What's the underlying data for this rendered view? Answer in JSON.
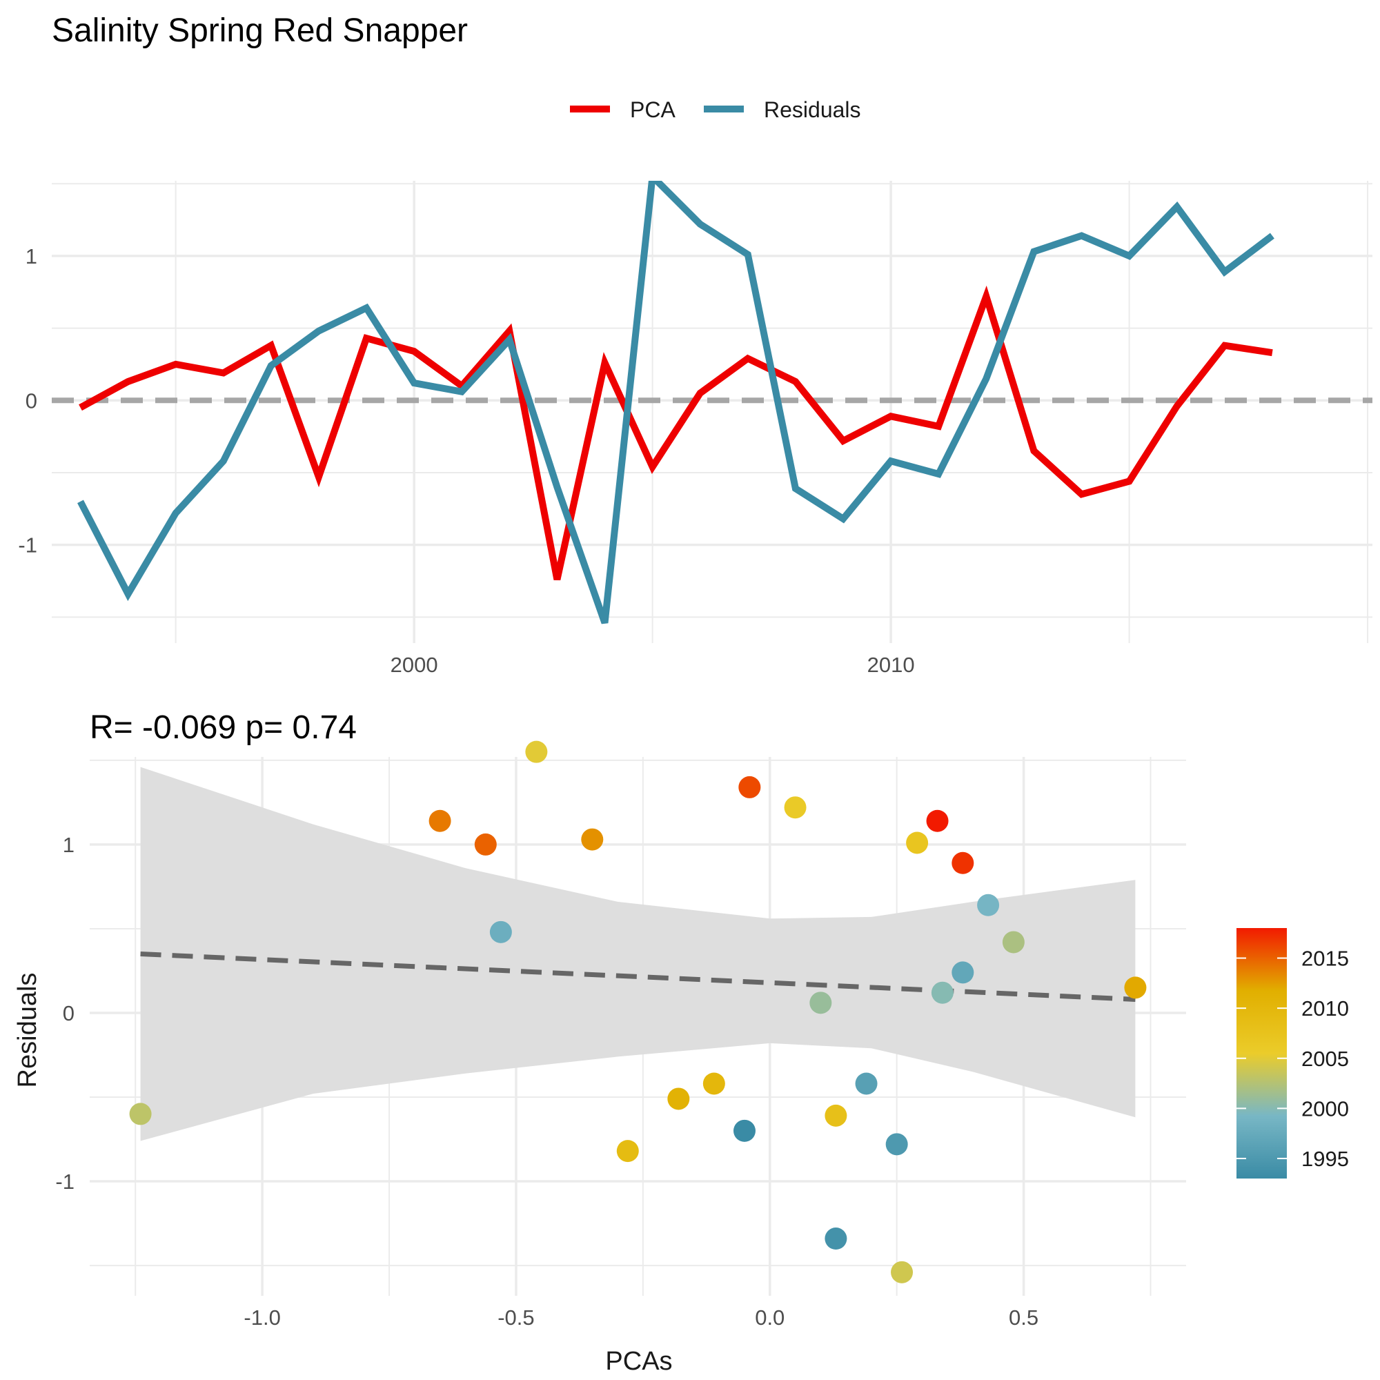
{
  "page_title": "Salinity Spring Red Snapper",
  "legend": {
    "items": [
      "PCA",
      "Residuals"
    ]
  },
  "scatter_subtitle": "R= -0.069  p= 0.74",
  "colors": {
    "pca": "#EE0000",
    "residuals": "#3A8BA5",
    "zero_line": "#A6A6A6",
    "fit_line": "#666666",
    "ribbon": "#DEDEDE",
    "grid": "#EBEBEB"
  },
  "chart_data": [
    {
      "type": "line",
      "title": "Salinity Spring Red Snapper",
      "xlabel": "",
      "ylabel": "",
      "x_ticks": [
        2000,
        2010
      ],
      "y_ticks": [
        -1,
        0,
        1
      ],
      "xlim": [
        1992.4,
        2020.1
      ],
      "ylim": [
        -1.68,
        1.52
      ],
      "grid": true,
      "legend_position": "top",
      "reference_line": {
        "y": 0,
        "style": "dashed"
      },
      "x": [
        1993,
        1994,
        1995,
        1996,
        1997,
        1998,
        1999,
        2000,
        2001,
        2002,
        2003,
        2004,
        2005,
        2006,
        2007,
        2008,
        2009,
        2010,
        2011,
        2012,
        2013,
        2014,
        2015,
        2016,
        2017,
        2018
      ],
      "series": [
        {
          "name": "PCA",
          "values": [
            -0.05,
            0.13,
            0.25,
            0.19,
            0.38,
            -0.53,
            0.43,
            0.34,
            0.1,
            0.48,
            -1.24,
            0.26,
            -0.46,
            0.05,
            0.29,
            0.13,
            -0.28,
            -0.11,
            -0.18,
            0.72,
            -0.35,
            -0.65,
            -0.56,
            -0.04,
            0.38,
            0.33
          ]
        },
        {
          "name": "Residuals",
          "values": [
            -0.7,
            -1.34,
            -0.78,
            -0.42,
            0.24,
            0.48,
            0.64,
            0.12,
            0.06,
            0.42,
            -0.6,
            -1.54,
            1.55,
            1.22,
            1.01,
            -0.61,
            -0.82,
            -0.42,
            -0.51,
            0.15,
            1.03,
            1.14,
            1.0,
            1.34,
            0.89,
            1.14
          ]
        }
      ]
    },
    {
      "type": "scatter",
      "title": "R= -0.069  p= 0.74",
      "xlabel": "PCAs",
      "ylabel": "Residuals",
      "x_ticks": [
        "-1.0",
        "-0.5",
        "0.0",
        "0.5"
      ],
      "y_ticks": [
        "-1",
        "0",
        "1"
      ],
      "xlim": [
        -1.34,
        0.82
      ],
      "ylim": [
        -1.68,
        1.52
      ],
      "grid": true,
      "color_by": "year",
      "colorbar": {
        "ticks": [
          1995,
          2000,
          2005,
          2010,
          2015
        ],
        "range": [
          1993,
          2018
        ],
        "colors": [
          "#3A8BA5",
          "#78B7C5",
          "#EBCC2A",
          "#E1AF00",
          "#F21A00"
        ]
      },
      "fit_line": {
        "x": [
          -1.24,
          0.72
        ],
        "y": [
          0.35,
          0.08
        ],
        "style": "dashed"
      },
      "confidence_band": {
        "x": [
          -1.24,
          -0.9,
          -0.6,
          -0.3,
          0.0,
          0.2,
          0.4,
          0.72
        ],
        "upper": [
          1.46,
          1.12,
          0.86,
          0.66,
          0.56,
          0.57,
          0.66,
          0.79
        ],
        "lower": [
          -0.76,
          -0.48,
          -0.36,
          -0.26,
          -0.18,
          -0.21,
          -0.35,
          -0.62
        ]
      },
      "points": [
        {
          "year": 1993,
          "x": -0.05,
          "y": -0.7
        },
        {
          "year": 1994,
          "x": 0.13,
          "y": -1.34
        },
        {
          "year": 1995,
          "x": 0.25,
          "y": -0.78
        },
        {
          "year": 1996,
          "x": 0.19,
          "y": -0.42
        },
        {
          "year": 1997,
          "x": 0.38,
          "y": 0.24
        },
        {
          "year": 1998,
          "x": -0.53,
          "y": 0.48
        },
        {
          "year": 1999,
          "x": 0.43,
          "y": 0.64
        },
        {
          "year": 2000,
          "x": 0.34,
          "y": 0.12
        },
        {
          "year": 2001,
          "x": 0.1,
          "y": 0.06
        },
        {
          "year": 2002,
          "x": 0.48,
          "y": 0.42
        },
        {
          "year": 2003,
          "x": -1.24,
          "y": -0.6
        },
        {
          "year": 2004,
          "x": 0.26,
          "y": -1.54
        },
        {
          "year": 2005,
          "x": -0.46,
          "y": 1.55
        },
        {
          "year": 2006,
          "x": 0.05,
          "y": 1.22
        },
        {
          "year": 2007,
          "x": 0.29,
          "y": 1.01
        },
        {
          "year": 2008,
          "x": 0.13,
          "y": -0.61
        },
        {
          "year": 2009,
          "x": -0.28,
          "y": -0.82
        },
        {
          "year": 2010,
          "x": -0.11,
          "y": -0.42
        },
        {
          "year": 2011,
          "x": -0.18,
          "y": -0.51
        },
        {
          "year": 2012,
          "x": 0.72,
          "y": 0.15
        },
        {
          "year": 2013,
          "x": -0.35,
          "y": 1.03
        },
        {
          "year": 2014,
          "x": -0.65,
          "y": 1.14
        },
        {
          "year": 2015,
          "x": -0.56,
          "y": 1.0
        },
        {
          "year": 2016,
          "x": -0.04,
          "y": 1.34
        },
        {
          "year": 2017,
          "x": 0.38,
          "y": 0.89
        },
        {
          "year": 2018,
          "x": 0.33,
          "y": 1.14
        }
      ]
    }
  ]
}
